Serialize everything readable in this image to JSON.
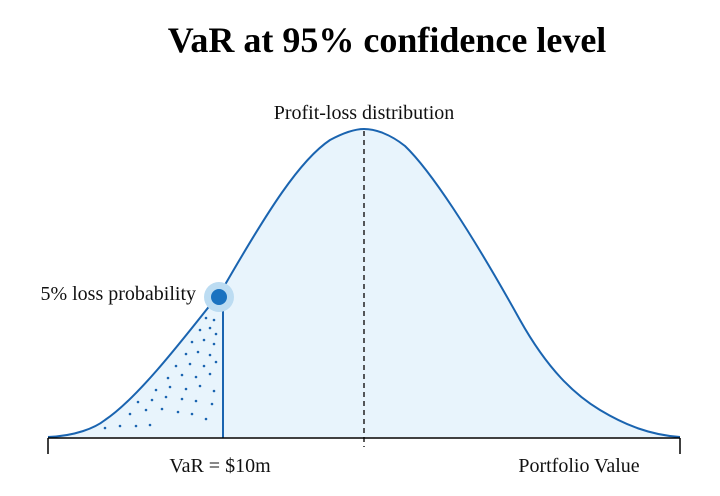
{
  "title": "VaR at 95% confidence level",
  "labels": {
    "distribution": "Profit-loss distribution",
    "loss_probability": "5% loss probability",
    "var_value": "VaR = $10m",
    "axis": "Portfolio Value"
  },
  "colors": {
    "curve": "#1a64b0",
    "fill": "#e8f4fc",
    "marker": "#1a72c0",
    "marker_halo": "#bcdcf2",
    "dots": "#1a64b0",
    "axis": "#000000",
    "mean_line": "#222222"
  }
}
